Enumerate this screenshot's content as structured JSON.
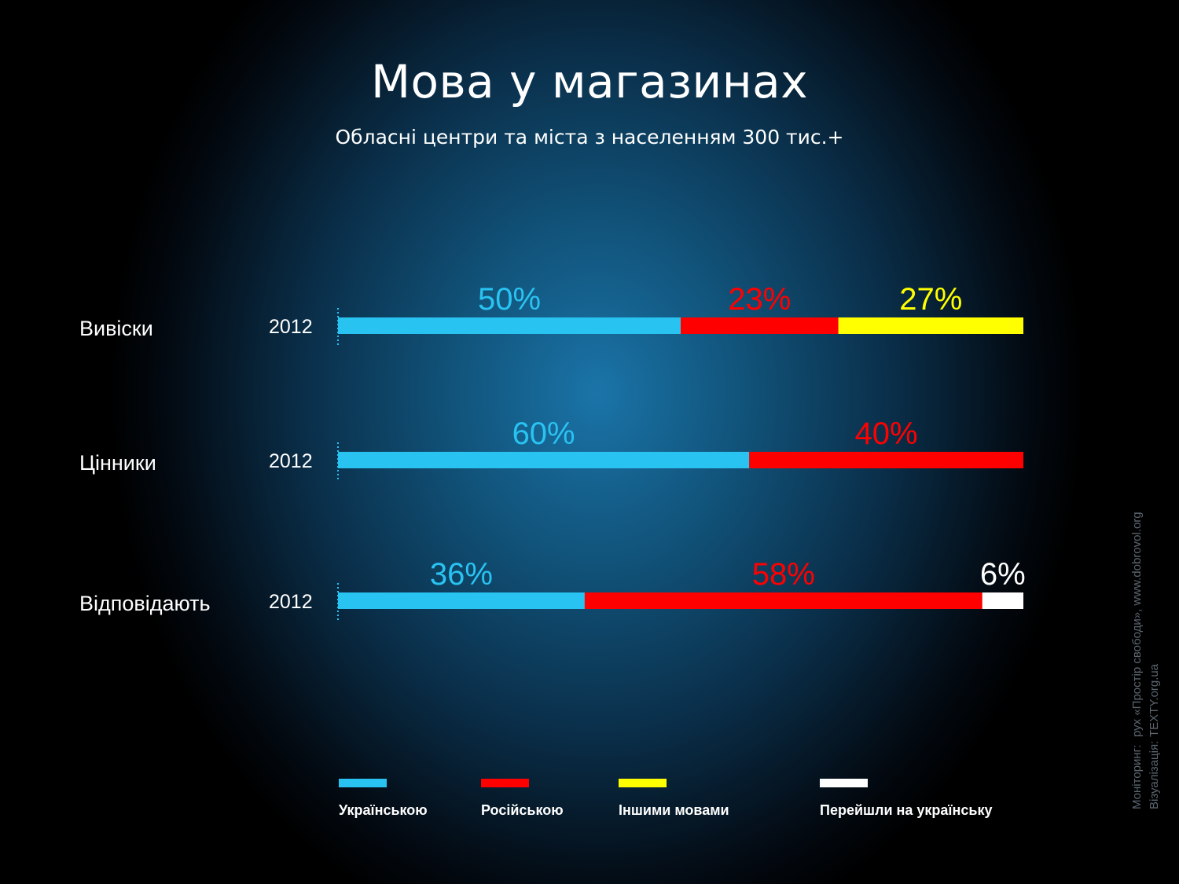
{
  "title": "Мова у магазинах",
  "subtitle": "Обласні центри та міста з населенням 300 тис.+",
  "credits": {
    "monitoring_label": "Моніторинг:",
    "monitoring_value": "рух «Простір свободи», www.dobrovol.org",
    "visualization_label": "Візуалізація:",
    "visualization_value": "TEXTY.org.ua"
  },
  "chart_data": {
    "type": "bar",
    "stacked": true,
    "orientation": "horizontal",
    "xlim": [
      0,
      100
    ],
    "categories": [
      "Вивіски",
      "Цінники",
      "Відповідають"
    ],
    "years": [
      "2012",
      "2012",
      "2012"
    ],
    "series": [
      {
        "name": "Українською",
        "color": "#29c3f2",
        "values": [
          50,
          60,
          36
        ],
        "labels": [
          "50%",
          "60%",
          "36%"
        ]
      },
      {
        "name": "Російською",
        "color": "#ff0000",
        "values": [
          23,
          40,
          58
        ],
        "labels": [
          "23%",
          "40%",
          "58%"
        ]
      },
      {
        "name": "Іншими мовами",
        "color": "#ffff00",
        "values": [
          27,
          0,
          0
        ],
        "labels": [
          "27%",
          "",
          ""
        ]
      },
      {
        "name": "Перейшли на українську",
        "color": "#ffffff",
        "values": [
          0,
          0,
          6
        ],
        "labels": [
          "",
          "",
          "6%"
        ]
      }
    ],
    "legend_placement": "bottom"
  }
}
